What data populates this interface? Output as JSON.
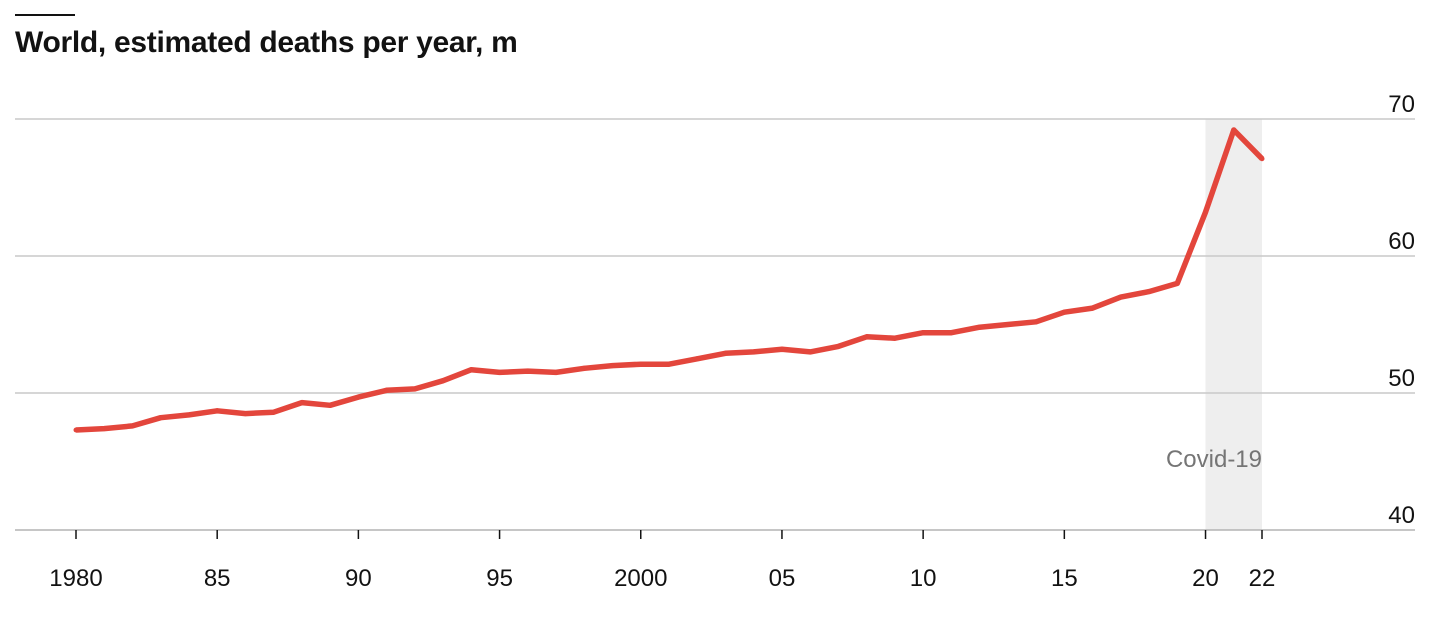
{
  "title": "World, estimated deaths per year, m",
  "chart_data": {
    "type": "line",
    "title": "World, estimated deaths per year, m",
    "xlabel": "",
    "ylabel": "",
    "ylim": [
      40,
      70
    ],
    "xlim": [
      1980,
      2022
    ],
    "y_ticks": [
      {
        "value": 70,
        "label": "70"
      },
      {
        "value": 60,
        "label": "60"
      },
      {
        "value": 50,
        "label": "50"
      },
      {
        "value": 40,
        "label": "40"
      }
    ],
    "x_ticks": [
      {
        "value": 1980,
        "label": "1980"
      },
      {
        "value": 1985,
        "label": "85"
      },
      {
        "value": 1990,
        "label": "90"
      },
      {
        "value": 1995,
        "label": "95"
      },
      {
        "value": 2000,
        "label": "2000"
      },
      {
        "value": 2005,
        "label": "05"
      },
      {
        "value": 2010,
        "label": "10"
      },
      {
        "value": 2015,
        "label": "15"
      },
      {
        "value": 2020,
        "label": "20"
      },
      {
        "value": 2022,
        "label": "22"
      }
    ],
    "grid": true,
    "series_color": "#e3463c",
    "x": [
      1980,
      1981,
      1982,
      1983,
      1984,
      1985,
      1986,
      1987,
      1988,
      1989,
      1990,
      1991,
      1992,
      1993,
      1994,
      1995,
      1996,
      1997,
      1998,
      1999,
      2000,
      2001,
      2002,
      2003,
      2004,
      2005,
      2006,
      2007,
      2008,
      2009,
      2010,
      2011,
      2012,
      2013,
      2014,
      2015,
      2016,
      2017,
      2018,
      2019,
      2020,
      2021,
      2022
    ],
    "series": [
      {
        "values": [
          47.3,
          47.4,
          47.6,
          48.2,
          48.4,
          48.7,
          48.5,
          48.6,
          49.3,
          49.1,
          49.7,
          50.2,
          50.3,
          50.9,
          51.7,
          51.5,
          51.6,
          51.5,
          51.8,
          52.0,
          52.1,
          52.1,
          52.5,
          52.9,
          53.0,
          53.2,
          53.0,
          53.4,
          54.1,
          54.0,
          54.4,
          54.4,
          54.8,
          55.0,
          55.2,
          55.9,
          56.2,
          57.0,
          57.4,
          58.0,
          63.2,
          69.2,
          67.1
        ]
      }
    ],
    "highlight": {
      "x_start": 2020,
      "x_end": 2022,
      "label": "Covid-19",
      "color": "#eeeeee",
      "label_color": "#757575"
    }
  }
}
